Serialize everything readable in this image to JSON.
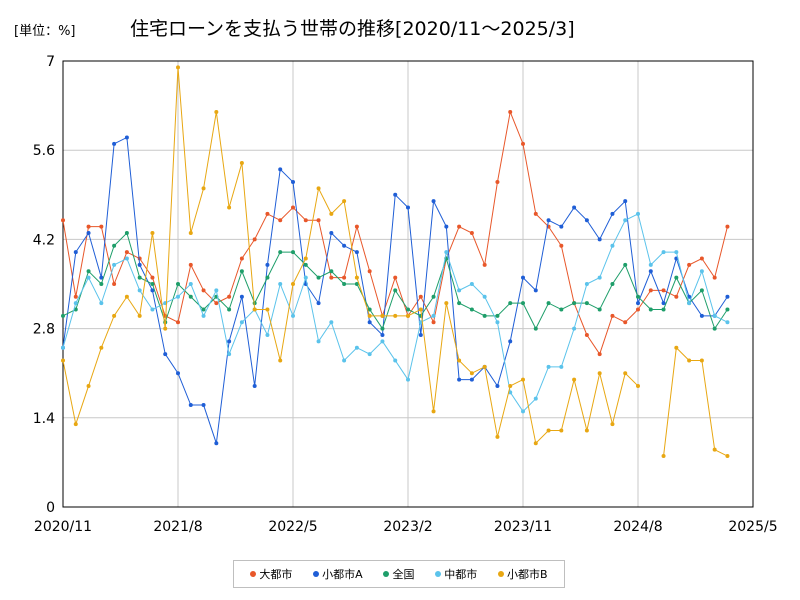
{
  "unit_label": "[単位：%]",
  "chart_data": {
    "type": "line",
    "title": "住宅ローンを支払う世帯の推移[2020/11～2025/3]",
    "xlabel": "",
    "ylabel": "",
    "ylim": [
      0,
      7
    ],
    "y_ticks": [
      "0",
      "1.4",
      "2.8",
      "4.2",
      "5.6",
      "7"
    ],
    "x_ticks": [
      "2020/11",
      "2021/8",
      "2022/5",
      "2023/2",
      "2023/11",
      "2024/8",
      "2025/5"
    ],
    "x_start": "2020/11",
    "x_months": 54,
    "grid": true,
    "legend": "bottom",
    "series": [
      {
        "name": "大都市",
        "color": "#e8572a",
        "values": [
          4.5,
          3.3,
          4.4,
          4.4,
          3.5,
          4.0,
          3.9,
          3.6,
          3.0,
          2.9,
          3.8,
          3.4,
          3.2,
          3.3,
          3.9,
          4.2,
          4.6,
          4.5,
          4.7,
          4.5,
          4.5,
          3.6,
          3.6,
          4.4,
          3.7,
          3.0,
          3.6,
          3.0,
          3.3,
          2.9,
          3.9,
          4.4,
          4.3,
          3.8,
          5.1,
          6.2,
          5.7,
          4.6,
          4.4,
          4.1,
          3.2,
          2.7,
          2.4,
          3.0,
          2.9,
          3.1,
          3.4,
          3.4,
          3.3,
          3.8,
          3.9,
          3.6,
          4.4
        ]
      },
      {
        "name": "小都市A",
        "color": "#1f5ed6",
        "values": [
          2.5,
          4.0,
          4.3,
          3.6,
          5.7,
          5.8,
          3.8,
          3.4,
          2.4,
          2.1,
          1.6,
          1.6,
          1.0,
          2.6,
          3.3,
          1.9,
          3.8,
          5.3,
          5.1,
          3.5,
          3.2,
          4.3,
          4.1,
          4.0,
          2.9,
          2.7,
          4.9,
          4.7,
          2.7,
          4.8,
          4.4,
          2.0,
          2.0,
          2.2,
          1.9,
          2.6,
          3.6,
          3.4,
          4.5,
          4.4,
          4.7,
          4.5,
          4.2,
          4.6,
          4.8,
          3.2,
          3.7,
          3.2,
          3.9,
          3.3,
          3.0,
          3.0,
          3.3
        ]
      },
      {
        "name": "全国",
        "color": "#1e9e6a",
        "values": [
          3.0,
          3.1,
          3.7,
          3.5,
          4.1,
          4.3,
          3.6,
          3.5,
          2.9,
          3.5,
          3.3,
          3.1,
          3.3,
          3.1,
          3.7,
          3.2,
          3.6,
          4.0,
          4.0,
          3.8,
          3.6,
          3.7,
          3.5,
          3.5,
          3.1,
          2.8,
          3.4,
          3.1,
          3.0,
          3.3,
          3.9,
          3.2,
          3.1,
          3.0,
          3.0,
          3.2,
          3.2,
          2.8,
          3.2,
          3.1,
          3.2,
          3.2,
          3.1,
          3.5,
          3.8,
          3.3,
          3.1,
          3.1,
          3.6,
          3.2,
          3.4,
          2.8,
          3.1
        ]
      },
      {
        "name": "中都市",
        "color": "#5bc3eb",
        "values": [
          2.5,
          3.2,
          3.6,
          3.2,
          3.8,
          3.9,
          3.4,
          3.1,
          3.2,
          3.3,
          3.5,
          3.0,
          3.4,
          2.4,
          2.9,
          3.1,
          2.7,
          3.5,
          3.0,
          3.6,
          2.6,
          2.9,
          2.3,
          2.5,
          2.4,
          2.6,
          2.3,
          2.0,
          2.9,
          3.0,
          4.0,
          3.4,
          3.5,
          3.3,
          2.9,
          1.8,
          1.5,
          1.7,
          2.2,
          2.2,
          2.8,
          3.5,
          3.6,
          4.1,
          4.5,
          4.6,
          3.8,
          4.0,
          4.0,
          3.2,
          3.7,
          3.0,
          2.9
        ]
      },
      {
        "name": "小都市B",
        "color": "#e8a712",
        "values": [
          2.3,
          1.3,
          1.9,
          2.5,
          3.0,
          3.3,
          3.0,
          4.3,
          2.8,
          6.9,
          4.3,
          5.0,
          6.2,
          4.7,
          5.4,
          3.1,
          3.1,
          2.3,
          3.5,
          3.9,
          5.0,
          4.6,
          4.8,
          3.6,
          3.0,
          3.0,
          3.0,
          3.0,
          3.1,
          1.5,
          3.2,
          2.3,
          2.1,
          2.2,
          1.1,
          1.9,
          2.0,
          1.0,
          1.2,
          1.2,
          2.0,
          1.2,
          2.1,
          1.3,
          2.1,
          1.9,
          null,
          0.8,
          2.5,
          2.3,
          2.3,
          0.9,
          0.8
        ]
      }
    ]
  }
}
